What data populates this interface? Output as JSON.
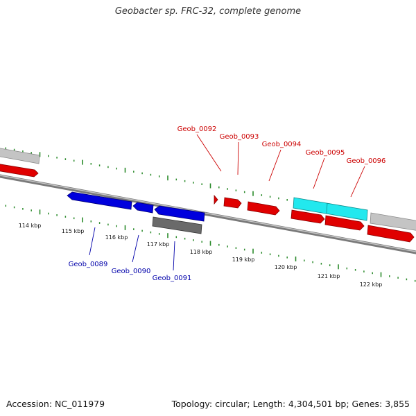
{
  "title": "Geobacter sp. FRC-32, complete genome",
  "footer": {
    "accession": "Accession: NC_011979",
    "summary": "Topology: circular; Length: 4,304,501 bp; Genes: 3,855"
  },
  "colors": {
    "forward_label": "#cc0000",
    "reverse_label": "#0000aa",
    "tick": "#2a8a2a",
    "backbone": "#8a8a8a"
  },
  "scale": {
    "unit": "kbp",
    "ticks": [
      "114 kbp",
      "115 kbp",
      "116 kbp",
      "117 kbp",
      "118 kbp",
      "119 kbp",
      "120 kbp",
      "121 kbp",
      "122 kbp"
    ]
  },
  "genes": [
    {
      "label": "Geob_0089",
      "strand": "reverse",
      "color": "blue"
    },
    {
      "label": "Geob_0090",
      "strand": "reverse",
      "color": "blue"
    },
    {
      "label": "Geob_0091",
      "strand": "reverse",
      "color": "blue"
    },
    {
      "label": "Geob_0092",
      "strand": "forward",
      "color": "red"
    },
    {
      "label": "Geob_0093",
      "strand": "forward",
      "color": "red"
    },
    {
      "label": "Geob_0094",
      "strand": "forward",
      "color": "red"
    },
    {
      "label": "Geob_0095",
      "strand": "forward",
      "color": "cyan"
    },
    {
      "label": "Geob_0096",
      "strand": "forward",
      "color": "red"
    }
  ]
}
